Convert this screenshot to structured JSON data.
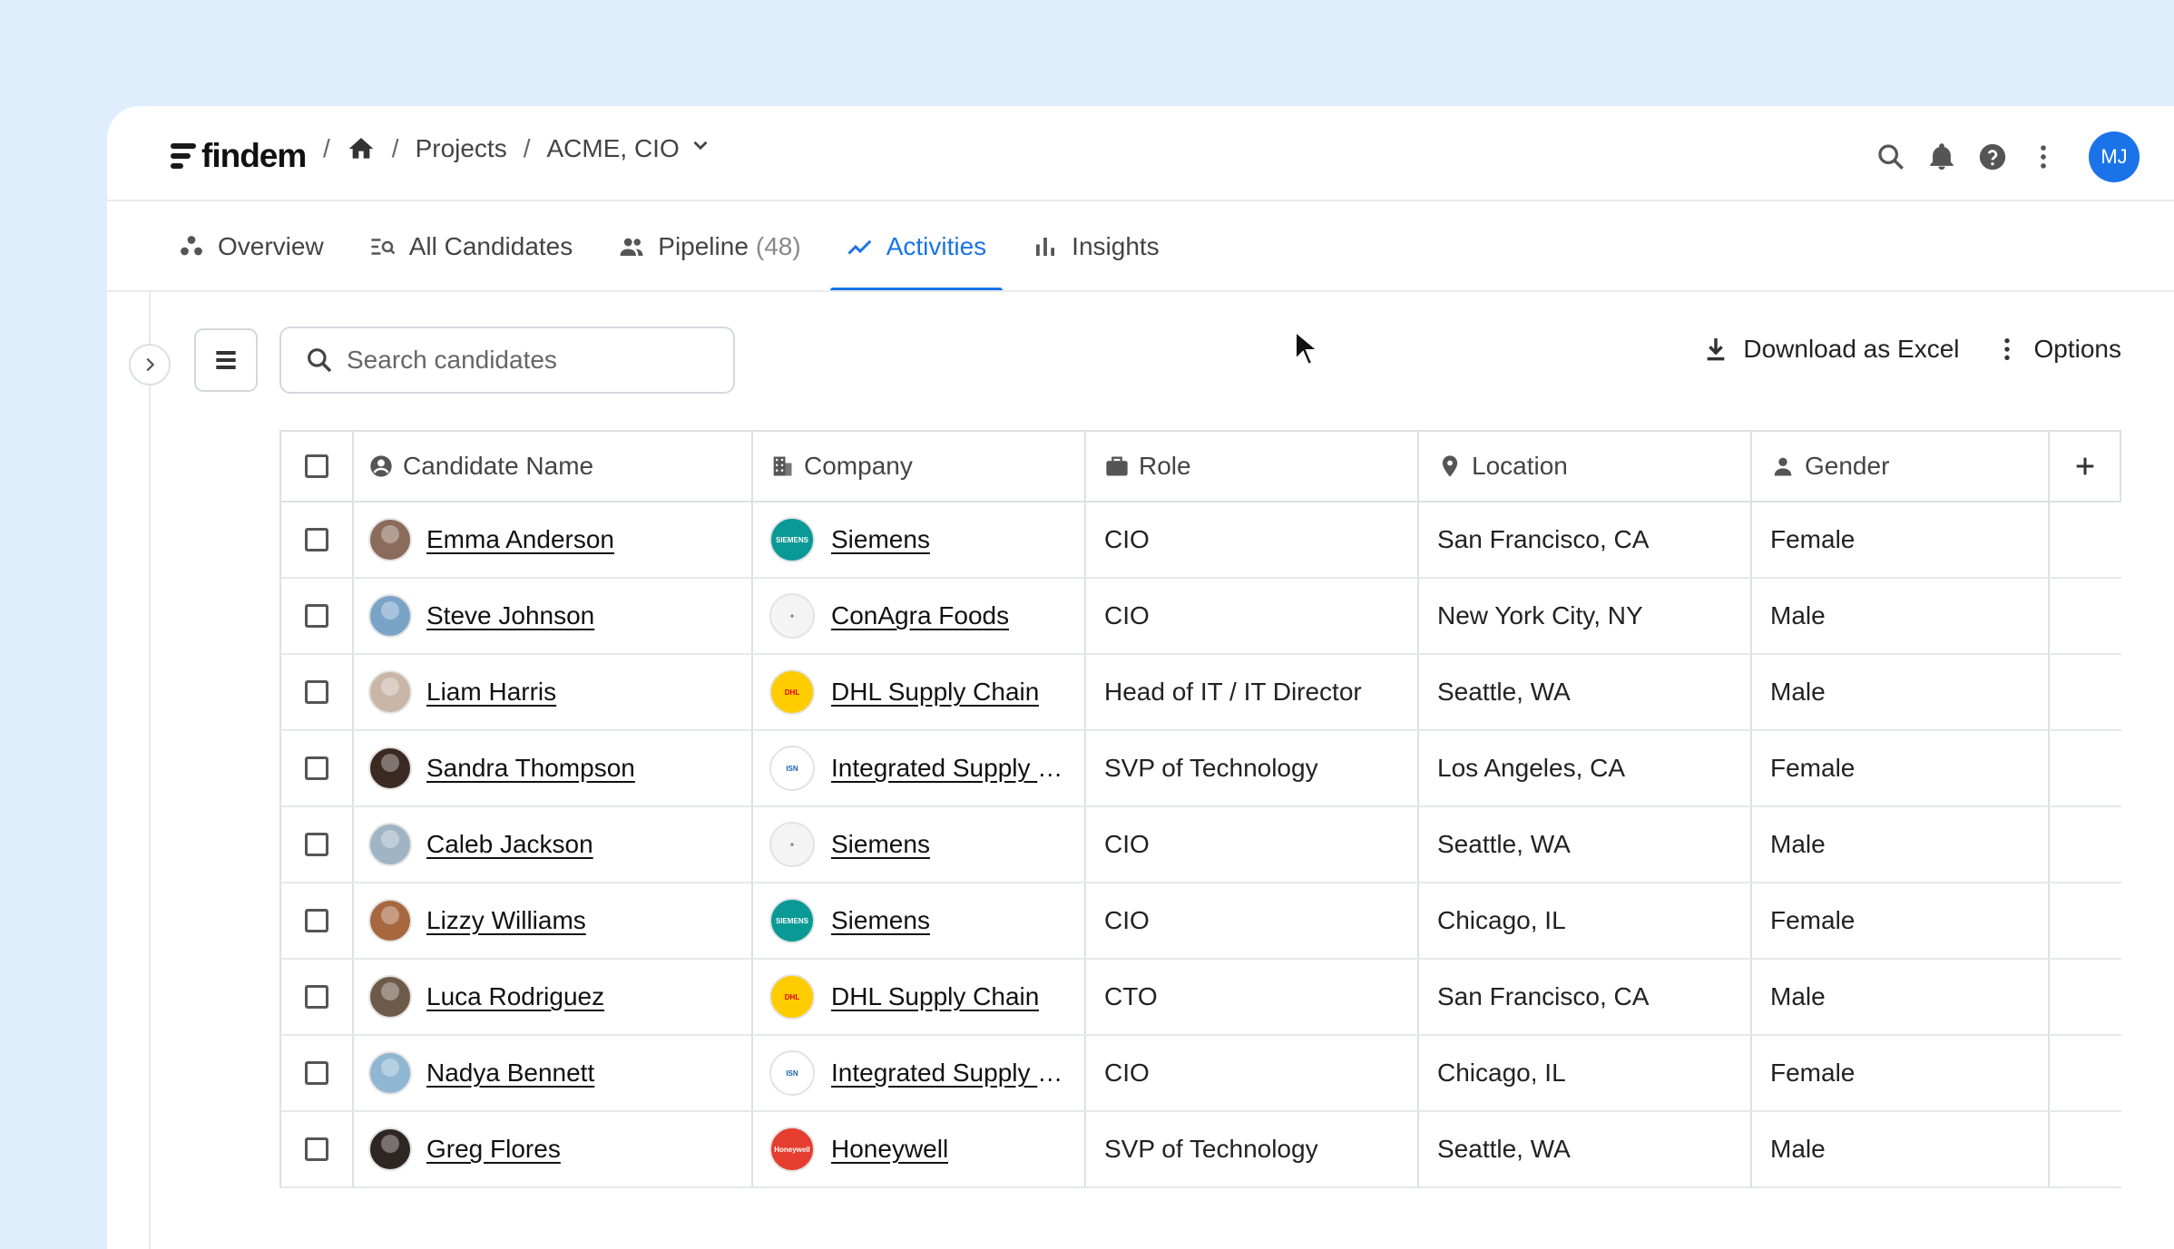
{
  "app": {
    "logo": "findem"
  },
  "breadcrumb": {
    "sep": "/",
    "projects": "Projects",
    "current": "ACME, CIO"
  },
  "user": {
    "initials": "MJ"
  },
  "tabs": [
    {
      "label": "Overview",
      "icon": "people-group-icon"
    },
    {
      "label": "All Candidates",
      "icon": "list-search-icon"
    },
    {
      "label": "Pipeline",
      "count": "(48)",
      "icon": "people-icon"
    },
    {
      "label": "Activities",
      "icon": "trend-line-icon",
      "active": true
    },
    {
      "label": "Insights",
      "icon": "bar-chart-icon"
    }
  ],
  "toolbar": {
    "search_placeholder": "Search candidates",
    "download_label": "Download as Excel",
    "options_label": "Options"
  },
  "table": {
    "headers": {
      "name": "Candidate Name",
      "company": "Company",
      "role": "Role",
      "location": "Location",
      "gender": "Gender"
    },
    "rows": [
      {
        "name": "Emma Anderson",
        "company": "Siemens",
        "logo": "siemens",
        "role": "CIO",
        "location": "San Francisco, CA",
        "gender": "Female",
        "face": "#8b6b5a"
      },
      {
        "name": "Steve Johnson",
        "company": "ConAgra Foods",
        "logo": "conagra",
        "role": "CIO",
        "location": "New York City, NY",
        "gender": "Male",
        "face": "#7aa3c8"
      },
      {
        "name": "Liam Harris",
        "company": "DHL Supply Chain",
        "logo": "dhl",
        "role": "Head of IT / IT Director",
        "location": "Seattle, WA",
        "gender": "Male",
        "face": "#c9b6a7"
      },
      {
        "name": "Sandra Thompson",
        "company": "Integrated Supply N...",
        "logo": "isn",
        "role": "SVP of Technology",
        "location": "Los Angeles, CA",
        "gender": "Female",
        "face": "#3b2a22"
      },
      {
        "name": "Caleb Jackson",
        "company": "Siemens",
        "logo": "conagra",
        "role": "CIO",
        "location": "Seattle, WA",
        "gender": "Male",
        "face": "#9fb4c4"
      },
      {
        "name": "Lizzy Williams",
        "company": "Siemens",
        "logo": "siemens",
        "role": "CIO",
        "location": "Chicago, IL",
        "gender": "Female",
        "face": "#a7683f"
      },
      {
        "name": "Luca Rodriguez",
        "company": "DHL Supply Chain",
        "logo": "dhl",
        "role": "CTO",
        "location": "San Francisco, CA",
        "gender": "Male",
        "face": "#6e5a48"
      },
      {
        "name": "Nadya Bennett",
        "company": "Integrated Supply N...",
        "logo": "isn",
        "role": "CIO",
        "location": "Chicago, IL",
        "gender": "Female",
        "face": "#8fb6d2"
      },
      {
        "name": "Greg Flores",
        "company": "Honeywell",
        "logo": "honeywell",
        "role": "SVP of Technology",
        "location": "Seattle, WA",
        "gender": "Male",
        "face": "#2e2622"
      }
    ]
  },
  "colors": {
    "accent": "#1a73e8",
    "background": "#dfeefd"
  }
}
